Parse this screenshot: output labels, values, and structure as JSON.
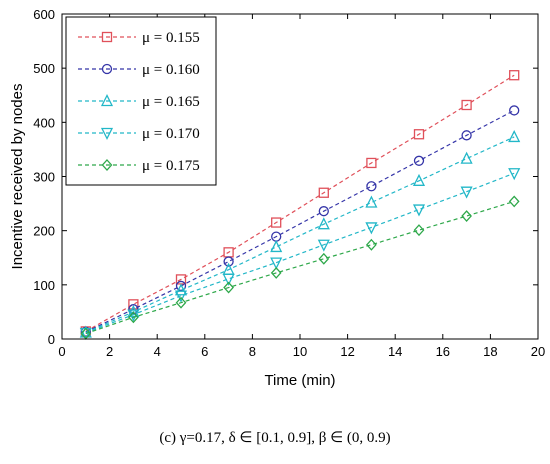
{
  "caption": "(c)  γ=0.17, δ ∈ [0.1, 0.9], β ∈ (0, 0.9)",
  "chart_data": {
    "type": "line",
    "xlabel": "Time (min)",
    "ylabel": "Incentive received by nodes",
    "xlim": [
      0,
      20
    ],
    "ylim": [
      0,
      600
    ],
    "xticks": [
      0,
      2,
      4,
      6,
      8,
      10,
      12,
      14,
      16,
      18,
      20
    ],
    "yticks": [
      0,
      100,
      200,
      300,
      400,
      500,
      600
    ],
    "grid": false,
    "legend_position": "top-left",
    "x": [
      1,
      3,
      5,
      7,
      9,
      11,
      13,
      15,
      17,
      19
    ],
    "series": [
      {
        "name": "μ = 0.155",
        "marker": "square",
        "color": "#e0505a",
        "values": [
          14,
          64,
          110,
          160,
          215,
          270,
          325,
          378,
          432,
          487
        ]
      },
      {
        "name": "μ = 0.160",
        "marker": "circle",
        "color": "#3535a8",
        "values": [
          13,
          55,
          98,
          143,
          189,
          236,
          282,
          329,
          376,
          422
        ]
      },
      {
        "name": "μ = 0.165",
        "marker": "triangle-up",
        "color": "#22b7c8",
        "values": [
          12,
          50,
          90,
          128,
          170,
          212,
          252,
          292,
          333,
          373
        ]
      },
      {
        "name": "μ = 0.170",
        "marker": "triangle-down",
        "color": "#22b7c8",
        "values": [
          11,
          45,
          80,
          111,
          141,
          174,
          206,
          239,
          272,
          306
        ]
      },
      {
        "name": "μ = 0.175",
        "marker": "diamond",
        "color": "#2ea84a",
        "values": [
          10,
          40,
          67,
          95,
          122,
          148,
          174,
          201,
          227,
          254
        ]
      }
    ]
  }
}
